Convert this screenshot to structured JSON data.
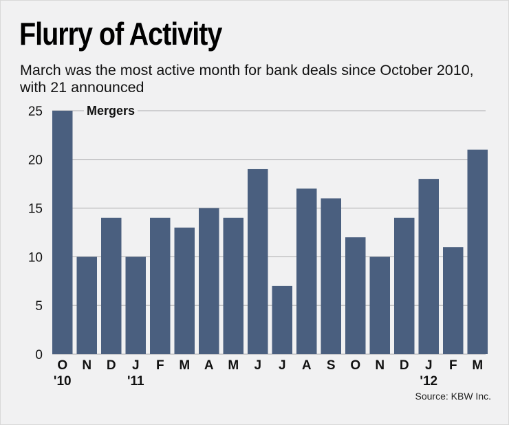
{
  "title": "Flurry of Activity",
  "subtitle": "March was the most active month for bank deals since October 2010, with 21 announced",
  "source": "Source: KBW Inc.",
  "colors": {
    "bar": "#4a5f7f",
    "grid": "#b9b9bb",
    "background": "#f1f1f2"
  },
  "chart_data": {
    "type": "bar",
    "categories": [
      "O",
      "N",
      "D",
      "J",
      "F",
      "M",
      "A",
      "M",
      "J",
      "J",
      "A",
      "S",
      "O",
      "N",
      "D",
      "J",
      "F",
      "M"
    ],
    "year_labels": [
      {
        "index": 0,
        "label": "'10"
      },
      {
        "index": 3,
        "label": "'11"
      },
      {
        "index": 15,
        "label": "'12"
      }
    ],
    "series": [
      {
        "name": "Mergers",
        "values": [
          25,
          10,
          14,
          10,
          14,
          13,
          15,
          14,
          19,
          7,
          17,
          16,
          12,
          10,
          14,
          18,
          11,
          21
        ]
      }
    ],
    "ylim": [
      0,
      25
    ],
    "yticks": [
      0,
      5,
      10,
      15,
      20,
      25
    ],
    "grid": true,
    "legend": "top-left"
  }
}
